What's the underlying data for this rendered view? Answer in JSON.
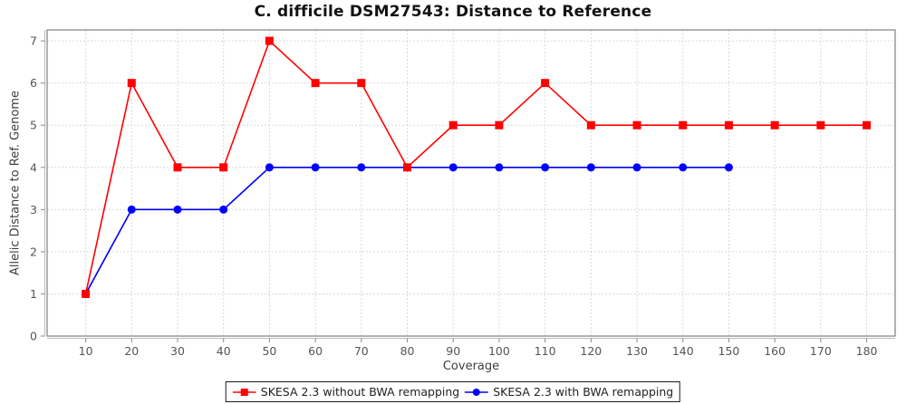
{
  "chart_data": {
    "type": "line",
    "title": "C. difficile DSM27543: Distance to Reference",
    "xlabel": "Coverage",
    "ylabel": "Allelic Distance to Ref. Genome",
    "x_ticks": [
      10,
      20,
      30,
      40,
      50,
      60,
      70,
      80,
      90,
      100,
      110,
      120,
      130,
      140,
      150,
      160,
      170,
      180
    ],
    "y_ticks": [
      0,
      1,
      2,
      3,
      4,
      5,
      6,
      7
    ],
    "xlim": [
      1.6,
      186.2
    ],
    "ylim": [
      0,
      7.26
    ],
    "grid": true,
    "legend_position": "bottom-center",
    "series": [
      {
        "name": "SKESA 2.3 without BWA remapping",
        "color": "#ff0000",
        "marker": "square",
        "x": [
          10,
          20,
          30,
          40,
          50,
          60,
          70,
          80,
          90,
          100,
          110,
          120,
          130,
          140,
          150,
          160,
          170,
          180
        ],
        "y": [
          1,
          6,
          4,
          4,
          7,
          6,
          6,
          4,
          5,
          5,
          6,
          5,
          5,
          5,
          5,
          5,
          5,
          5
        ]
      },
      {
        "name": "SKESA 2.3 with BWA remapping",
        "color": "#0000ff",
        "marker": "circle",
        "x": [
          10,
          20,
          30,
          40,
          50,
          60,
          70,
          80,
          90,
          100,
          110,
          120,
          130,
          140,
          150
        ],
        "y": [
          1,
          3,
          3,
          3,
          4,
          4,
          4,
          4,
          4,
          4,
          4,
          4,
          4,
          4,
          4
        ]
      }
    ],
    "style": {
      "grid_color": "#d9d9d9",
      "border_color": "#7f7f7f",
      "axis_line_color": "#bbbbbb",
      "tick_color": "#888888",
      "tick_label_color": "#555555"
    }
  }
}
